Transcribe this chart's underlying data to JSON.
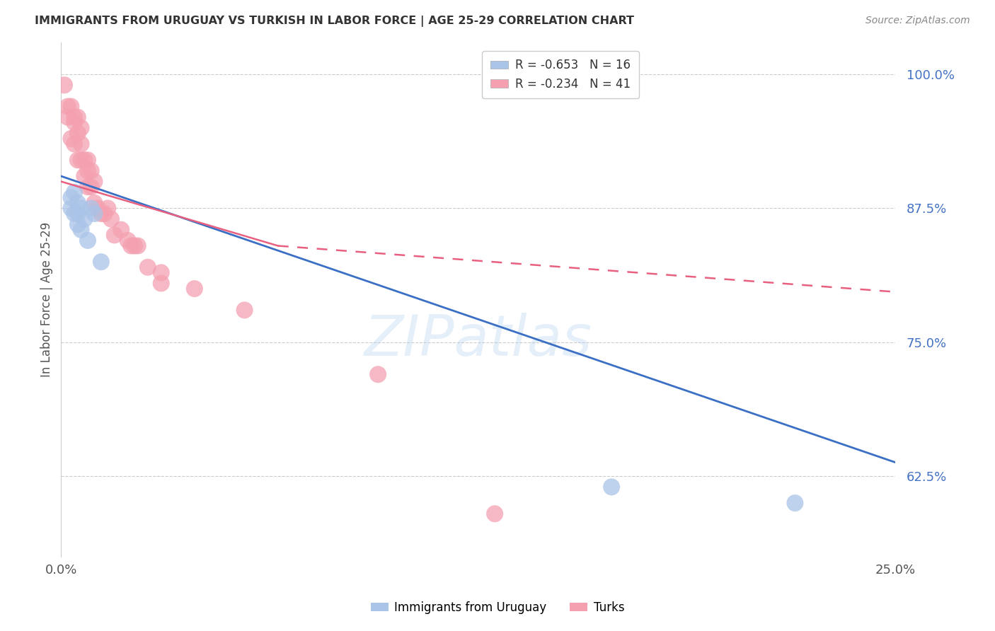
{
  "title": "IMMIGRANTS FROM URUGUAY VS TURKISH IN LABOR FORCE | AGE 25-29 CORRELATION CHART",
  "source": "Source: ZipAtlas.com",
  "ylabel": "In Labor Force | Age 25-29",
  "xlim": [
    0.0,
    0.25
  ],
  "ylim": [
    0.55,
    1.03
  ],
  "yticks": [
    0.625,
    0.75,
    0.875,
    1.0
  ],
  "ytick_labels": [
    "62.5%",
    "75.0%",
    "87.5%",
    "100.0%"
  ],
  "uruguay_R": "-0.653",
  "uruguay_N": "16",
  "turks_R": "-0.234",
  "turks_N": "41",
  "uruguay_color": "#aac4e8",
  "turks_color": "#f4a0b0",
  "trendline_uruguay_color": "#3a6fc4",
  "trendline_turks_color": "#e86080",
  "watermark": "ZIPatlas",
  "uruguay_points_x": [
    0.003,
    0.003,
    0.004,
    0.004,
    0.005,
    0.005,
    0.005,
    0.006,
    0.006,
    0.007,
    0.008,
    0.009,
    0.01,
    0.012,
    0.165,
    0.22
  ],
  "uruguay_points_y": [
    0.885,
    0.875,
    0.89,
    0.87,
    0.88,
    0.87,
    0.86,
    0.875,
    0.855,
    0.865,
    0.845,
    0.875,
    0.87,
    0.825,
    0.615,
    0.6
  ],
  "turks_points_x": [
    0.001,
    0.002,
    0.002,
    0.003,
    0.003,
    0.004,
    0.004,
    0.004,
    0.005,
    0.005,
    0.005,
    0.006,
    0.006,
    0.006,
    0.007,
    0.007,
    0.008,
    0.008,
    0.008,
    0.009,
    0.009,
    0.01,
    0.01,
    0.011,
    0.012,
    0.013,
    0.014,
    0.015,
    0.016,
    0.018,
    0.02,
    0.021,
    0.022,
    0.023,
    0.026,
    0.03,
    0.03,
    0.04,
    0.055,
    0.095,
    0.13
  ],
  "turks_points_y": [
    0.99,
    0.97,
    0.96,
    0.97,
    0.94,
    0.96,
    0.955,
    0.935,
    0.96,
    0.945,
    0.92,
    0.95,
    0.935,
    0.92,
    0.92,
    0.905,
    0.92,
    0.91,
    0.895,
    0.91,
    0.895,
    0.9,
    0.88,
    0.875,
    0.87,
    0.87,
    0.875,
    0.865,
    0.85,
    0.855,
    0.845,
    0.84,
    0.84,
    0.84,
    0.82,
    0.815,
    0.805,
    0.8,
    0.78,
    0.72,
    0.59
  ],
  "trendline_uruguay_x0": 0.0,
  "trendline_uruguay_y0": 0.905,
  "trendline_uruguay_x1": 0.25,
  "trendline_uruguay_y1": 0.638,
  "trendline_turks_solid_x0": 0.0,
  "trendline_turks_solid_y0": 0.9,
  "trendline_turks_solid_x1": 0.065,
  "trendline_turks_solid_y1": 0.84,
  "trendline_turks_dash_x0": 0.065,
  "trendline_turks_dash_y0": 0.84,
  "trendline_turks_dash_x1": 0.25,
  "trendline_turks_dash_y1": 0.797,
  "legend_labels": [
    "Immigrants from Uruguay",
    "Turks"
  ],
  "background_color": "#ffffff",
  "grid_color": "#cccccc",
  "title_color": "#333333",
  "axis_label_color": "#555555",
  "ytick_color": "#4472c4",
  "xtick_color": "#555555"
}
